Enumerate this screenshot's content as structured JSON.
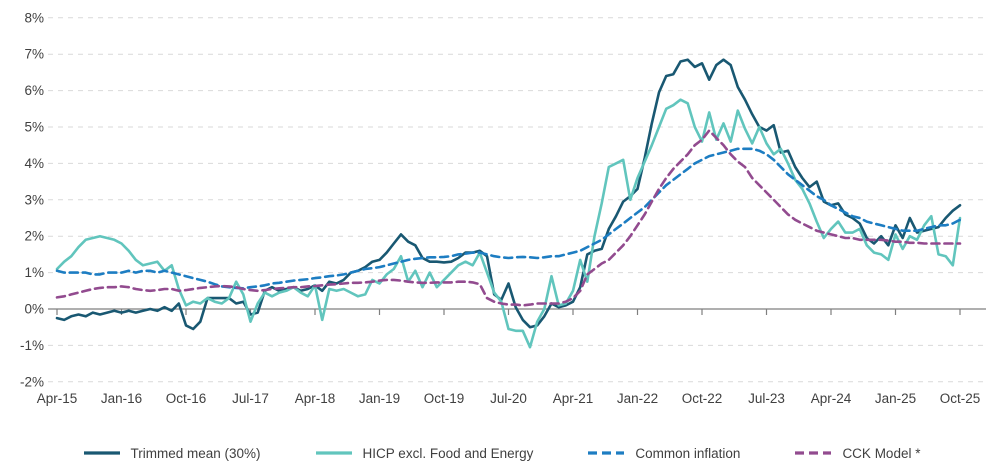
{
  "chart_data": {
    "type": "line",
    "x_unit": "month",
    "x_start": "Apr-2015",
    "x_end": "Oct-2025",
    "n_points": 127,
    "x_tick_labels": [
      "Apr-15",
      "Jan-16",
      "Oct-16",
      "Jul-17",
      "Apr-18",
      "Jan-19",
      "Oct-19",
      "Jul-20",
      "Apr-21",
      "Jan-22",
      "Oct-22",
      "Jul-23",
      "Apr-24",
      "Jan-25",
      "Oct-25"
    ],
    "x_tick_every_n_months": 9,
    "y_ticks": [
      8,
      7,
      6,
      5,
      4,
      3,
      2,
      1,
      0,
      -1,
      -2
    ],
    "y_tick_suffix": "%",
    "ylim": [
      -2,
      8
    ],
    "grid": true,
    "zero_axis": true,
    "legend_position": "bottom",
    "title": "",
    "xlabel": "",
    "ylabel": "",
    "colors": {
      "grid": "#d9d9d9",
      "zero_line": "#7f7f7f",
      "tick_text": "#404040"
    },
    "series": [
      {
        "name": "Trimmed mean (30%)",
        "color": "#19587288",
        "hex": "#195872",
        "style": "solid",
        "values": [
          -0.25,
          -0.3,
          -0.2,
          -0.15,
          -0.2,
          -0.1,
          -0.15,
          -0.1,
          -0.05,
          -0.1,
          -0.05,
          -0.1,
          -0.05,
          0,
          -0.05,
          0.05,
          -0.05,
          0.15,
          -0.45,
          -0.55,
          -0.35,
          0.3,
          0.3,
          0.3,
          0.3,
          0.15,
          0.2,
          -0.15,
          -0.1,
          0.5,
          0.6,
          0.5,
          0.55,
          0.6,
          0.5,
          0.55,
          0.65,
          0.5,
          0.75,
          0.7,
          0.8,
          1.0,
          1.05,
          1.15,
          1.3,
          1.35,
          1.55,
          1.8,
          2.05,
          1.85,
          1.75,
          1.4,
          1.3,
          1.3,
          1.28,
          1.3,
          1.4,
          1.55,
          1.55,
          1.6,
          1.45,
          0.4,
          0.25,
          0.7,
          0.05,
          -0.3,
          -0.5,
          -0.45,
          -0.2,
          0.15,
          0.05,
          0.1,
          0.2,
          0.6,
          1.5,
          1.6,
          1.65,
          2.2,
          2.55,
          2.95,
          3.1,
          3.3,
          4.15,
          5.1,
          5.95,
          6.4,
          6.45,
          6.8,
          6.85,
          6.65,
          6.75,
          6.3,
          6.7,
          6.85,
          6.7,
          6.1,
          5.75,
          5.35,
          5.0,
          4.9,
          5.05,
          4.3,
          4.35,
          3.9,
          3.6,
          3.35,
          3.5,
          2.95,
          2.85,
          2.9,
          2.6,
          2.5,
          2.35,
          1.95,
          1.8,
          2.0,
          1.75,
          2.3,
          1.95,
          2.5,
          2.1,
          2.15,
          2.2,
          2.25,
          2.5,
          2.7,
          2.85
        ]
      },
      {
        "name": "HICP excl. Food and Energy",
        "hex": "#61c5bd",
        "style": "solid",
        "values": [
          1.1,
          1.3,
          1.45,
          1.7,
          1.9,
          1.95,
          2.0,
          1.95,
          1.9,
          1.8,
          1.6,
          1.35,
          1.2,
          1.25,
          1.3,
          1.05,
          1.2,
          0.55,
          0.1,
          0.2,
          0.15,
          0.3,
          0.2,
          0.15,
          0.3,
          0.75,
          0.4,
          -0.35,
          0.15,
          0.45,
          0.35,
          0.45,
          0.5,
          0.6,
          0.45,
          0.35,
          0.65,
          -0.3,
          0.55,
          0.5,
          0.55,
          0.45,
          0.35,
          0.4,
          0.8,
          0.7,
          0.95,
          1.1,
          1.45,
          0.75,
          1.05,
          0.6,
          1.0,
          0.6,
          0.8,
          1.0,
          1.2,
          1.3,
          1.2,
          1.55,
          1.0,
          0.45,
          0.2,
          -0.55,
          -0.6,
          -0.6,
          -1.05,
          -0.35,
          0.0,
          0.9,
          0.1,
          0.15,
          0.5,
          1.35,
          0.75,
          2.0,
          2.9,
          3.9,
          4.0,
          4.1,
          3.0,
          3.6,
          4.05,
          4.5,
          5.0,
          5.5,
          5.6,
          5.75,
          5.65,
          5.0,
          4.6,
          5.4,
          4.65,
          5.1,
          4.6,
          5.45,
          4.95,
          4.55,
          5.0,
          4.55,
          4.25,
          4.4,
          4.0,
          3.55,
          3.3,
          2.9,
          2.4,
          1.95,
          2.2,
          2.4,
          2.1,
          2.1,
          2.2,
          1.75,
          1.55,
          1.5,
          1.35,
          2.05,
          1.65,
          2.0,
          1.9,
          2.3,
          2.55,
          1.5,
          1.45,
          1.2,
          2.5
        ]
      },
      {
        "name": "Common inflation",
        "hex": "#1d7dc2",
        "style": "dashed",
        "values": [
          1.05,
          1.0,
          1.0,
          1.0,
          1.0,
          0.95,
          0.95,
          1.0,
          1.0,
          1.0,
          1.05,
          1.0,
          1.05,
          1.05,
          1.0,
          1.05,
          1.0,
          0.95,
          0.9,
          0.85,
          0.8,
          0.75,
          0.68,
          0.62,
          0.6,
          0.58,
          0.57,
          0.6,
          0.62,
          0.65,
          0.7,
          0.72,
          0.75,
          0.78,
          0.8,
          0.82,
          0.85,
          0.87,
          0.9,
          0.92,
          0.95,
          1.0,
          1.05,
          1.1,
          1.12,
          1.15,
          1.2,
          1.25,
          1.3,
          1.35,
          1.38,
          1.4,
          1.42,
          1.42,
          1.43,
          1.45,
          1.5,
          1.52,
          1.55,
          1.55,
          1.5,
          1.45,
          1.42,
          1.4,
          1.42,
          1.43,
          1.42,
          1.4,
          1.42,
          1.45,
          1.45,
          1.5,
          1.55,
          1.6,
          1.7,
          1.8,
          1.9,
          2.05,
          2.2,
          2.35,
          2.5,
          2.65,
          2.8,
          3.0,
          3.2,
          3.4,
          3.55,
          3.7,
          3.85,
          4.0,
          4.1,
          4.2,
          4.25,
          4.3,
          4.35,
          4.4,
          4.4,
          4.4,
          4.35,
          4.25,
          4.1,
          3.9,
          3.7,
          3.55,
          3.4,
          3.25,
          3.1,
          3.0,
          2.85,
          2.75,
          2.65,
          2.55,
          2.5,
          2.4,
          2.35,
          2.3,
          2.25,
          2.2,
          2.15,
          2.15,
          2.15,
          2.2,
          2.25,
          2.3,
          2.3,
          2.35,
          2.45
        ]
      },
      {
        "name": "CCK Model *",
        "hex": "#924b8f",
        "style": "dashed",
        "values": [
          0.32,
          0.35,
          0.4,
          0.45,
          0.5,
          0.55,
          0.58,
          0.6,
          0.6,
          0.62,
          0.6,
          0.55,
          0.52,
          0.5,
          0.52,
          0.55,
          0.55,
          0.5,
          0.52,
          0.55,
          0.58,
          0.6,
          0.62,
          0.63,
          0.62,
          0.6,
          0.55,
          0.52,
          0.5,
          0.52,
          0.55,
          0.57,
          0.58,
          0.6,
          0.6,
          0.62,
          0.63,
          0.65,
          0.67,
          0.68,
          0.7,
          0.72,
          0.72,
          0.73,
          0.75,
          0.78,
          0.8,
          0.8,
          0.78,
          0.75,
          0.73,
          0.72,
          0.72,
          0.73,
          0.73,
          0.73,
          0.75,
          0.75,
          0.73,
          0.68,
          0.3,
          0.2,
          0.15,
          0.12,
          0.12,
          0.1,
          0.12,
          0.15,
          0.15,
          0.15,
          0.15,
          0.2,
          0.3,
          0.5,
          0.95,
          1.1,
          1.25,
          1.35,
          1.55,
          1.75,
          2.0,
          2.3,
          2.6,
          2.95,
          3.3,
          3.6,
          3.85,
          4.05,
          4.25,
          4.5,
          4.65,
          4.9,
          4.7,
          4.5,
          4.25,
          4.05,
          3.9,
          3.6,
          3.4,
          3.2,
          3.0,
          2.8,
          2.6,
          2.45,
          2.35,
          2.25,
          2.15,
          2.1,
          2.05,
          2.0,
          1.95,
          1.95,
          1.9,
          1.9,
          1.9,
          1.9,
          1.88,
          1.85,
          1.85,
          1.82,
          1.82,
          1.8,
          1.8,
          1.8,
          1.8,
          1.8,
          1.8
        ]
      }
    ]
  }
}
